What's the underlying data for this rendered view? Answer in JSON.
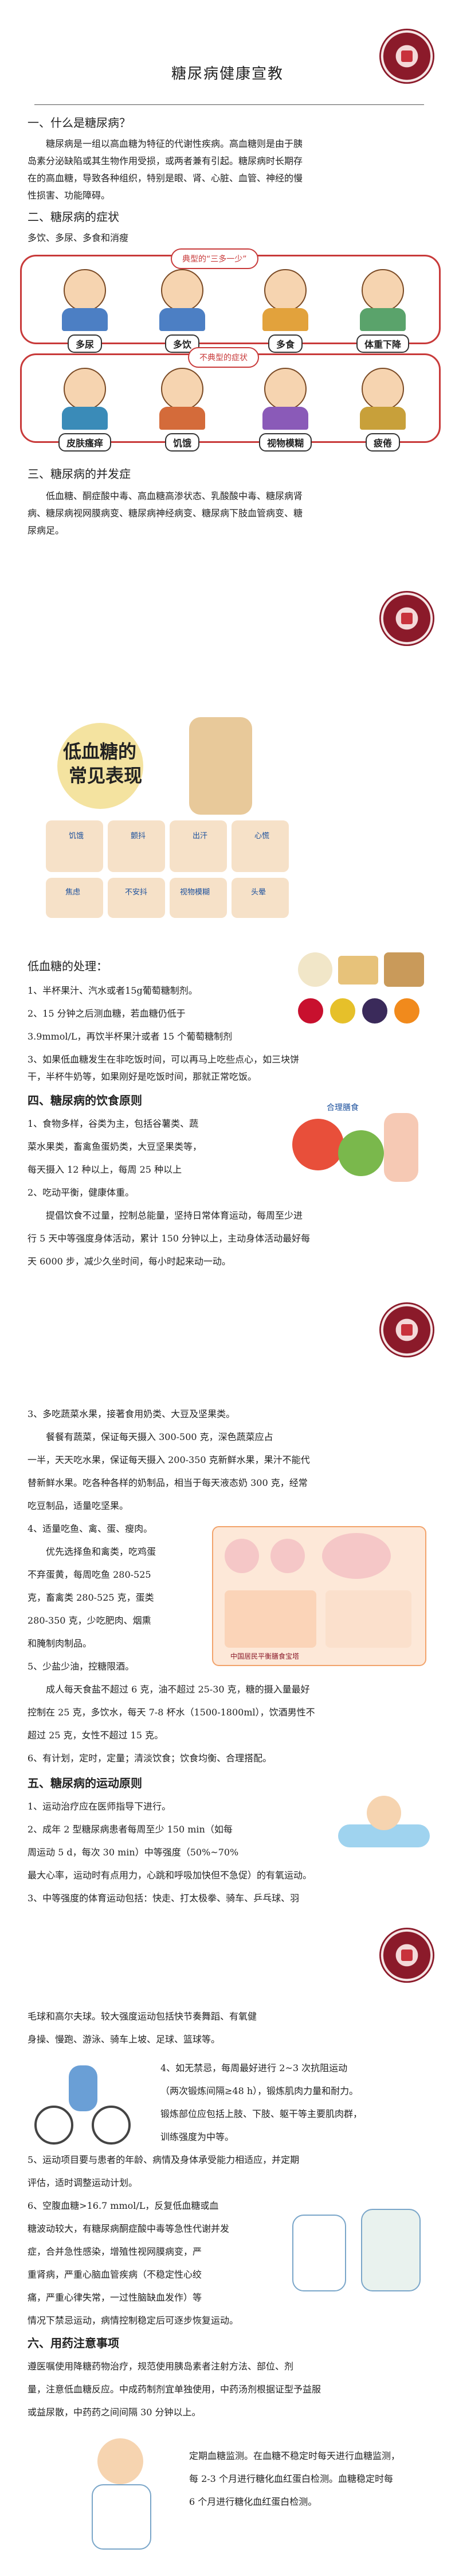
{
  "title": "糖尿病健康宣教",
  "s1": {
    "heading": "一、什么是糖尿病？",
    "para": [
      "糖尿病是一组以高血糖为特征的代谢性疾病。高血糖则是由于胰",
      "岛素分泌缺陷或其生物作用受损，或两者兼有引起。糖尿病时长期存",
      "在的高血糖，导致各种组织，特别是眼、肾、心脏、血管、神经的慢",
      "性损害、功能障碍。"
    ]
  },
  "s2": {
    "heading": "二、糖尿病的症状",
    "line": "多饮、多尿、多食和消瘦",
    "typical_label": "典型的“三多一少”",
    "typical": [
      "多尿",
      "多饮",
      "多食",
      "体重下降"
    ],
    "atypical_label": "不典型的症状",
    "atypical": [
      "皮肤瘙痒",
      "饥饿",
      "视物模糊",
      "疲倦"
    ]
  },
  "s3": {
    "heading": "三、糖尿病的并发症",
    "para": [
      "低血糖、酮症酸中毒、高血糖高渗状态、乳酸酸中毒、糖尿病肾",
      "病、糖尿病视网膜病变、糖尿病神经病变、糖尿病下肢血管病变、糖",
      "尿病足。"
    ]
  },
  "hypo": {
    "poster_title_1": "低血糖的",
    "poster_title_2": "常见表现",
    "signs_row1": [
      "饥饿",
      "颤抖",
      "出汗",
      "心慌"
    ],
    "signs_row2": [
      "焦虑",
      "不安抖",
      "视物模糊",
      "头晕"
    ],
    "heading": "低血糖的处理：",
    "lines": [
      "1、半杯果汁、汽水或者15g葡萄糖制剂。",
      "2、15 分钟之后测血糖，若血糖仍低于",
      "3.9mmol/L，再饮半杯果汁或者 15 个葡萄糖制剂",
      "3、如果低血糖发生在非吃饭时间，可以再马上吃些点心，如三块饼",
      "干，半杯牛奶等，如果刚好是吃饭时间，那就正常吃饭。"
    ]
  },
  "s4": {
    "heading": "四、糖尿病的饮食原则",
    "lines": [
      "1、食物多样，谷类为主，包括谷薯类、蔬",
      "菜水果类，畜禽鱼蛋奶类，大豆坚果类等，",
      "每天摄入 12 种以上，每周 25 种以上",
      "2、吃动平衡，健康体重。"
    ],
    "para": [
      "提倡饮食不过量，控制总能量，坚持日常体育运动，每周至少进",
      "行 5 天中等强度身体活动，累计 150 分钟以上，主动身体活动最好每",
      "天 6000 步，减少久坐时间，每小时起来动一动。"
    ],
    "poster_caption": "合理膳食",
    "cont": [
      "3、多吃蔬菜水果，接著食用奶类、大豆及坚果类。",
      "餐餐有蔬菜，保证每天摄入 300-500 克，深色蔬菜应占",
      "一半，天天吃水果，保证每天摄入 200-350 克新鲜水果，果汁不能代",
      "替新鲜水果。吃各种各样的奶制品，相当于每天液态奶 300 克，经常",
      "吃豆制品，适量吃坚果。",
      "4、适量吃鱼、禽、蛋、瘦肉。",
      "优先选择鱼和禽类，吃鸡蛋",
      "不弃蛋黄，每周吃鱼 280-525",
      "克，畜禽类 280-525 克，蛋类",
      "280-350 克，少吃肥肉、烟熏",
      "和腌制肉制品。",
      "5、少盐少油，控糖限酒。",
      "成人每天食盐不超过 6 克，油不超过 25-30 克，糖的摄入量最好",
      "控制在 25 克，多饮水，每天 7-8 杯水（1500-1800ml），饮酒男性不",
      "超过 25 克，女性不超过 15 克。",
      "6、有计划，定时，定量；清淡饮食；饮食均衡、合理搭配。"
    ],
    "pagoda_label": "中国居民平衡膳食宝塔"
  },
  "s5": {
    "heading": "五、糖尿病的运动原则",
    "lines": [
      "1、运动治疗应在医师指导下进行。",
      "2、成年 2 型糖尿病患者每周至少 150 min（如每",
      "周运动 5 d，每次 30 min）中等强度（50%~70%",
      "最大心率，运动时有点用力，心跳和呼吸加快但不急促）的有氧运动。",
      "3、中等强度的体育运动包括：快走、打太极拳、骑车、乒乓球、羽",
      "毛球和高尔夫球。较大强度运动包括快节奏舞蹈、有氧健",
      "身操、慢跑、游泳、骑车上坡、足球、篮球等。"
    ],
    "item4": [
      "4、如无禁忌，每周最好进行 2~3 次抗阻运动",
      "（两次锻炼间隔≥48 h），锻炼肌肉力量和耐力。",
      "锻炼部位应包括上肢、下肢、躯干等主要肌肉群，",
      "训练强度为中等。"
    ],
    "item56": [
      "5、运动项目要与患者的年龄、病情及身体承受能力相适应，并定期",
      "评估，适时调整运动计划。",
      "6、空腹血糖>16.7 mmol/L，反复低血糖或血",
      "糖波动较大，有糖尿病酮症酸中毒等急性代谢并发",
      "症，合并急性感染，增殖性视网膜病变，严",
      "重肾病，严重心脑血管疾病（不稳定性心绞",
      "痛，严重心律失常，一过性脑缺血发作）等",
      "情况下禁忌运动，病情控制稳定后可逐步恢复运动。"
    ]
  },
  "s6": {
    "heading": "六、用药注意事项",
    "para": [
      "遵医嘱使用降糖药物治疗，规范使用胰岛素者注射方法、部位、剂",
      "量，注意低血糖反应。中成药制剂宜单独使用，中药汤剂根据证型予益服",
      "或益尿散，中药药之间间隔 30 分钟以上。"
    ],
    "monitor": [
      "定期血糖监测。在血糖不稳定时每天进行血糖监测，",
      "每 2-3 个月进行糖化血红蛋白检测。血糖稳定时每",
      "6 个月进行糖化血红蛋白检测。"
    ]
  },
  "colors": {
    "accent": "#c83a3a",
    "seal": "#8b1a2a",
    "text": "#222222"
  }
}
